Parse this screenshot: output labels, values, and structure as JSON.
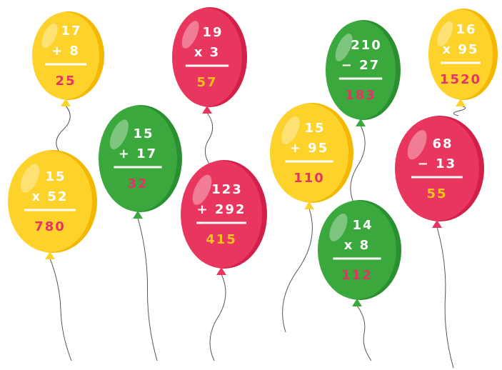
{
  "balloons": [
    {
      "top": "17",
      "operation": "+ 8",
      "answer": "25",
      "color": "yellow"
    },
    {
      "top": "15",
      "operation": "x 52",
      "answer": "780",
      "color": "yellow"
    },
    {
      "top": "15",
      "operation": "+ 17",
      "answer": "32",
      "color": "green"
    },
    {
      "top": "19",
      "operation": "x 3",
      "answer": "57",
      "color": "red"
    },
    {
      "top": "123",
      "operation": "+ 292",
      "answer": "415",
      "color": "red"
    },
    {
      "top": "15",
      "operation": "+ 95",
      "answer": "110",
      "color": "yellow"
    },
    {
      "top": "210",
      "operation": "− 27",
      "answer": "183",
      "color": "green"
    },
    {
      "top": "14",
      "operation": "x 8",
      "answer": "112",
      "color": "green"
    },
    {
      "top": "16",
      "operation": "x 95",
      "answer": "1520",
      "color": "yellow"
    },
    {
      "top": "68",
      "operation": "− 13",
      "answer": "55",
      "color": "red"
    }
  ]
}
